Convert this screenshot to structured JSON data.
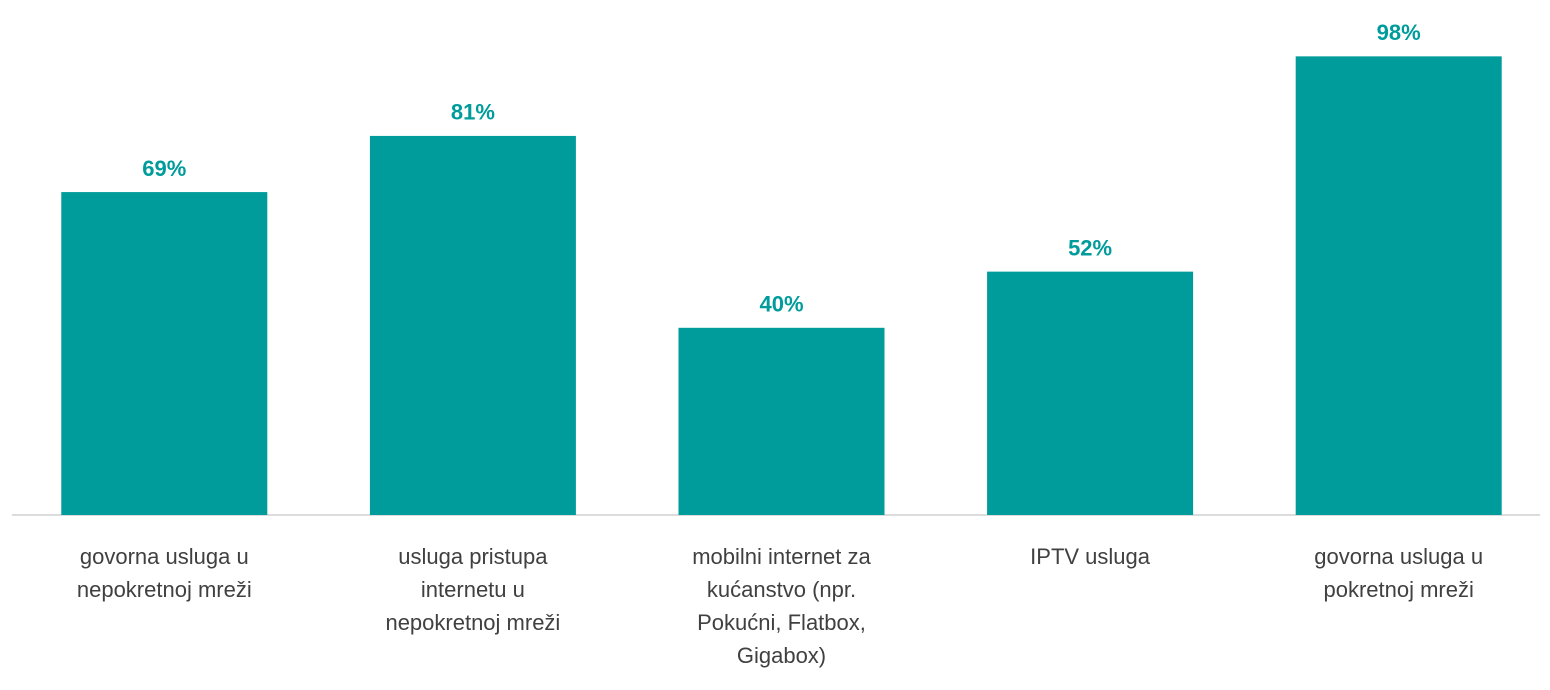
{
  "chart_data": {
    "type": "bar",
    "categories": [
      "govorna usluga u nepokretnoj mreži",
      "usluga pristupa internetu u nepokretnoj mreži",
      "mobilni internet za kućanstvo (npr. Pokućni, Flatbox, Gigabox)",
      "IPTV usluga",
      "govorna usluga u pokretnoj mreži"
    ],
    "values": [
      69,
      81,
      40,
      52,
      98
    ],
    "value_labels": [
      "69%",
      "81%",
      "40%",
      "52%",
      "98%"
    ],
    "color": "#009b9b",
    "ylim": [
      0,
      100
    ]
  }
}
